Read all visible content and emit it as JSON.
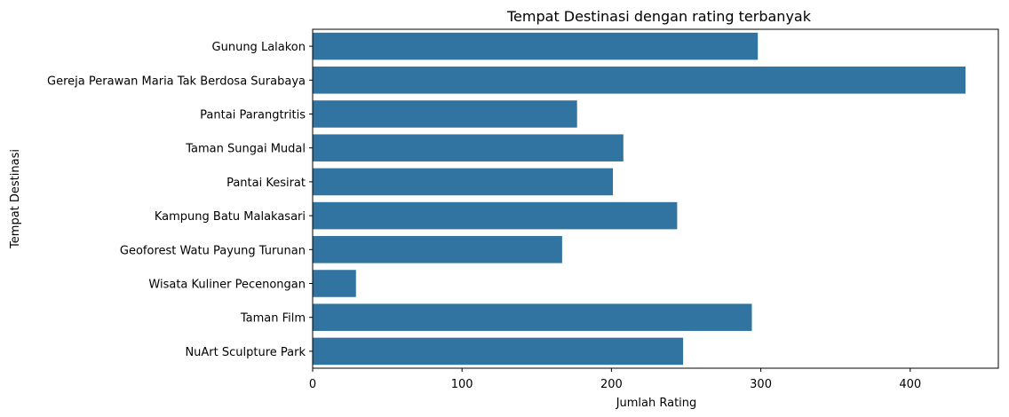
{
  "chart_data": {
    "type": "bar",
    "orientation": "horizontal",
    "title": "Tempat Destinasi dengan rating terbanyak",
    "xlabel": "Jumlah Rating",
    "ylabel": "Tempat Destinasi",
    "categories": [
      "Gunung Lalakon",
      "Gereja Perawan Maria Tak Berdosa Surabaya",
      "Pantai Parangtritis",
      "Taman Sungai Mudal",
      "Pantai Kesirat",
      "Kampung Batu Malakasari",
      "Geoforest Watu Payung Turunan",
      "Wisata Kuliner Pecenongan",
      "Taman Film",
      "NuArt Sculpture Park"
    ],
    "values": [
      298,
      437,
      177,
      208,
      201,
      244,
      167,
      29,
      294,
      248
    ],
    "xlim": [
      0,
      459
    ],
    "xticks": [
      0,
      100,
      200,
      300,
      400
    ],
    "bar_color": "#3274a1",
    "grid": false,
    "legend": "none"
  }
}
